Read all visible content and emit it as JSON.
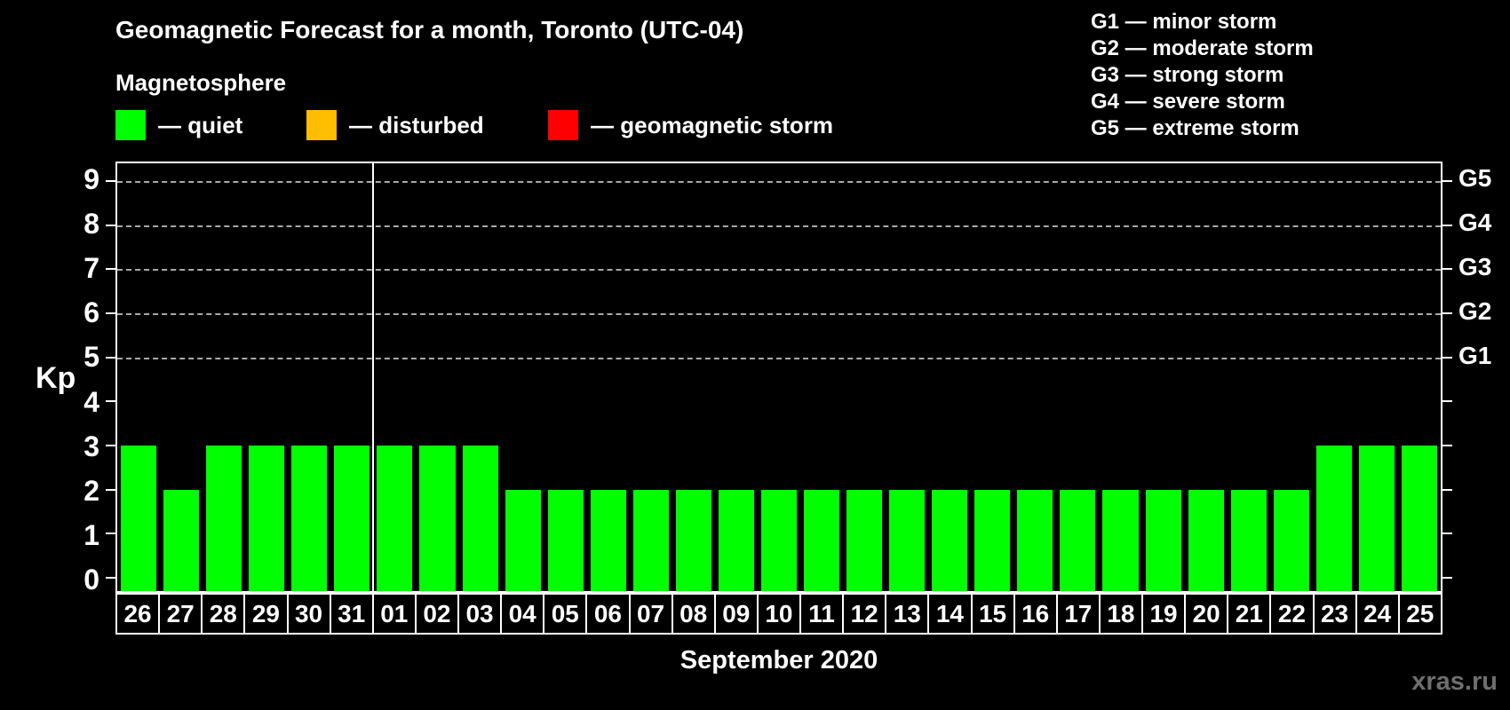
{
  "header": {
    "title": "Geomagnetic Forecast for a month, Toronto (UTC-04)",
    "subtitle": "Magnetosphere"
  },
  "legend": {
    "items": [
      {
        "name": "quiet",
        "label": "— quiet",
        "color": "#00ff00"
      },
      {
        "name": "disturbed",
        "label": "— disturbed",
        "color": "#ffbe00"
      },
      {
        "name": "geomagnetic-storm",
        "label": "— geomagnetic storm",
        "color": "#ff0000"
      }
    ]
  },
  "g_scale_legend": [
    "G1 — minor storm",
    "G2 — moderate storm",
    "G3 — strong storm",
    "G4 — severe storm",
    "G5 — extreme storm"
  ],
  "watermark": "xras.ru",
  "chart_data": {
    "type": "bar",
    "title": "Geomagnetic Forecast for a month, Toronto (UTC-04)",
    "xlabel": "September 2020",
    "ylabel": "Kp",
    "ylim": [
      -0.3,
      9.4
    ],
    "yticks": [
      0,
      1,
      2,
      3,
      4,
      5,
      6,
      7,
      8,
      9
    ],
    "gridlines_at": [
      5,
      6,
      7,
      8,
      9
    ],
    "grid_style": "dashed-horizontal",
    "legend_position": "top-left",
    "right_axis": [
      {
        "label": "G1",
        "kp": 5
      },
      {
        "label": "G2",
        "kp": 6
      },
      {
        "label": "G3",
        "kp": 7
      },
      {
        "label": "G4",
        "kp": 8
      },
      {
        "label": "G5",
        "kp": 9
      }
    ],
    "categories": [
      "26",
      "27",
      "28",
      "29",
      "30",
      "31",
      "01",
      "02",
      "03",
      "04",
      "05",
      "06",
      "07",
      "08",
      "09",
      "10",
      "11",
      "12",
      "13",
      "14",
      "15",
      "16",
      "17",
      "18",
      "19",
      "20",
      "21",
      "22",
      "23",
      "24",
      "25"
    ],
    "values": [
      3,
      2,
      3,
      3,
      3,
      3,
      3,
      3,
      3,
      2,
      2,
      2,
      2,
      2,
      2,
      2,
      2,
      2,
      2,
      2,
      2,
      2,
      2,
      2,
      2,
      2,
      2,
      2,
      3,
      3,
      3
    ],
    "month_separator_after_index": 5,
    "color_rule": {
      "quiet_max_kp": 3,
      "disturbed_max_kp": 4
    }
  }
}
